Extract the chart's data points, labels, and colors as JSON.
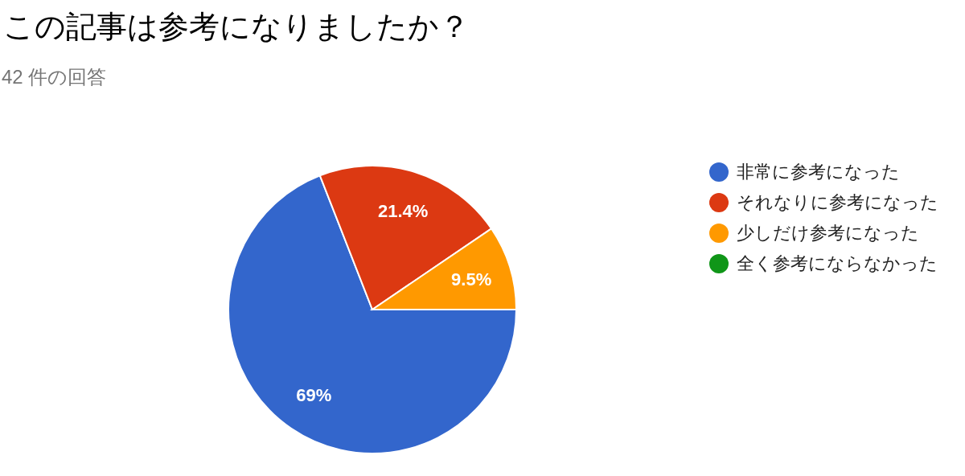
{
  "chart_data": {
    "type": "pie",
    "title": "この記事は参考になりましたか？",
    "subtitle": "42 件の回答",
    "categories": [
      "非常に参考になった",
      "それなりに参考になった",
      "少しだけ参考になった",
      "全く参考にならなかった"
    ],
    "values": [
      69,
      21.4,
      9.5,
      0
    ],
    "colors": [
      "#3366cc",
      "#dc3912",
      "#ff9900",
      "#109618"
    ],
    "value_labels": [
      "69%",
      "21.4%",
      "9.5%",
      null
    ],
    "legend": "right"
  }
}
